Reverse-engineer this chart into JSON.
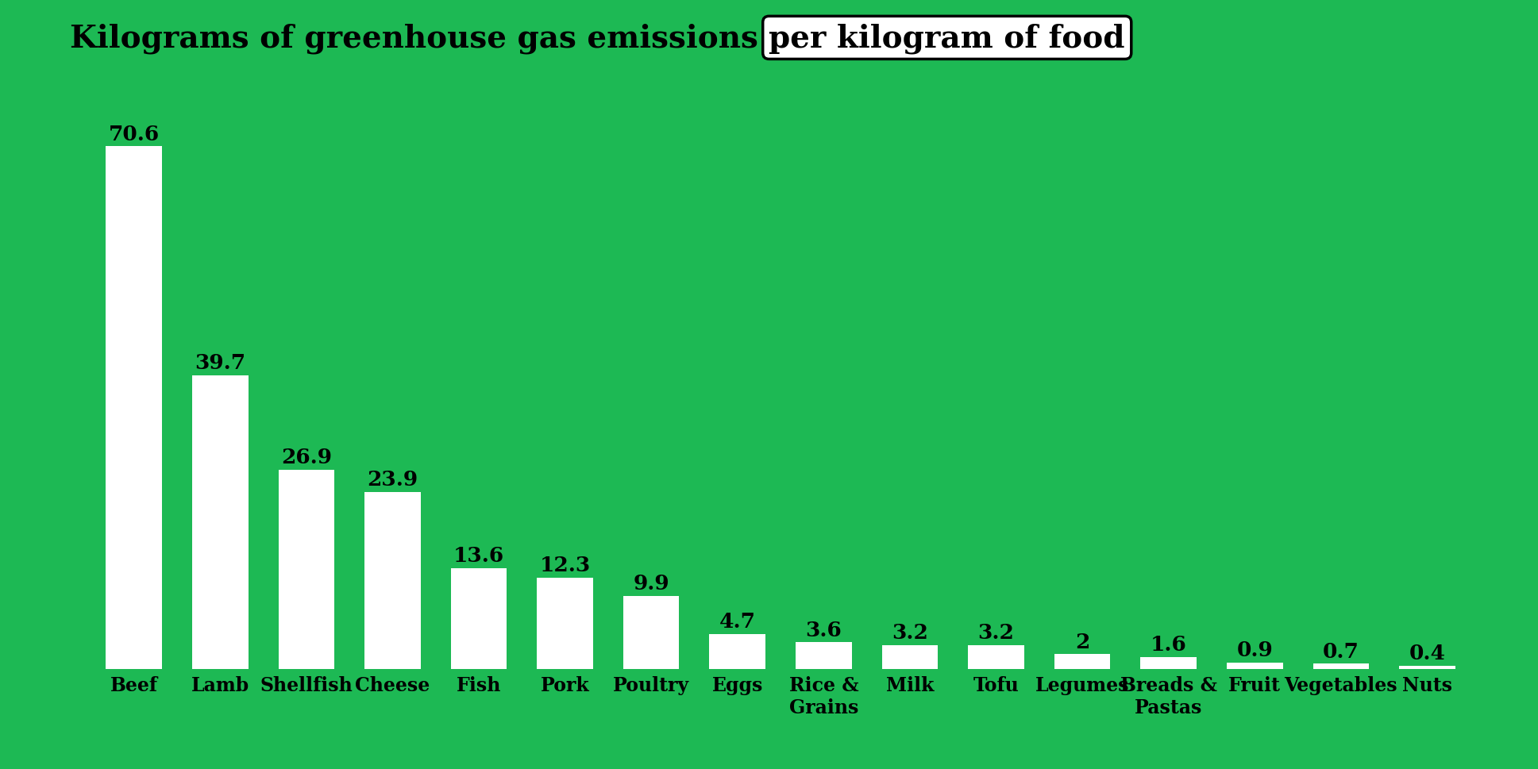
{
  "categories": [
    "Beef",
    "Lamb",
    "Shellfish",
    "Cheese",
    "Fish",
    "Pork",
    "Poultry",
    "Eggs",
    "Rice &\nGrains",
    "Milk",
    "Tofu",
    "Legumes",
    "Breads &\nPastas",
    "Fruit",
    "Vegetables",
    "Nuts"
  ],
  "values": [
    70.6,
    39.7,
    26.9,
    23.9,
    13.6,
    12.3,
    9.9,
    4.7,
    3.6,
    3.2,
    3.2,
    2,
    1.6,
    0.9,
    0.7,
    0.4
  ],
  "value_labels": [
    "70.6",
    "39.7",
    "26.9",
    "23.9",
    "13.6",
    "12.3",
    "9.9",
    "4.7",
    "3.6",
    "3.2",
    "3.2",
    "2",
    "1.6",
    "0.9",
    "0.7",
    "0.4"
  ],
  "bar_color": "#ffffff",
  "background_color": "#1db954",
  "title_regular": "Kilograms of greenhouse gas emissions ",
  "title_highlight": "per kilogram of food",
  "title_fontsize": 28,
  "value_fontsize": 19,
  "tick_fontsize": 17,
  "ylim": [
    0,
    78
  ]
}
